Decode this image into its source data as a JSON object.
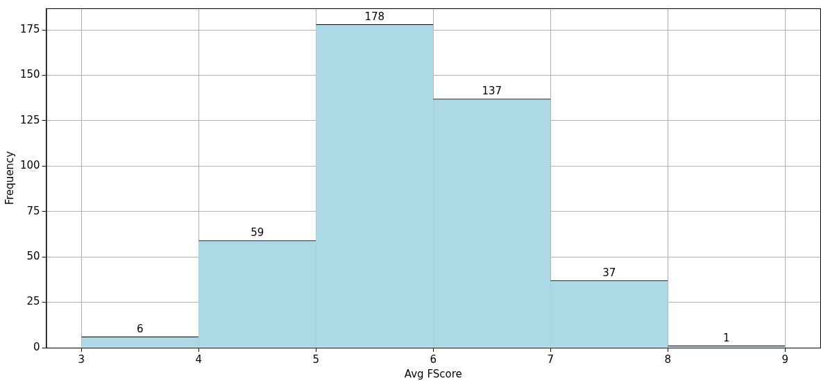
{
  "chart_data": {
    "type": "histogram",
    "xlabel": "Avg FScore",
    "ylabel": "Frequency",
    "bins": [
      3,
      4,
      5,
      6,
      7,
      8,
      9
    ],
    "values": [
      6,
      59,
      178,
      137,
      37,
      1
    ],
    "color": "#add8e6",
    "xlim": [
      2.7,
      9.3
    ],
    "ylim": [
      0,
      186.9
    ],
    "xticks": [
      3,
      4,
      5,
      6,
      7,
      8,
      9
    ],
    "yticks": [
      0,
      25,
      50,
      75,
      100,
      125,
      150,
      175
    ],
    "grid": true,
    "data_labels": true
  }
}
